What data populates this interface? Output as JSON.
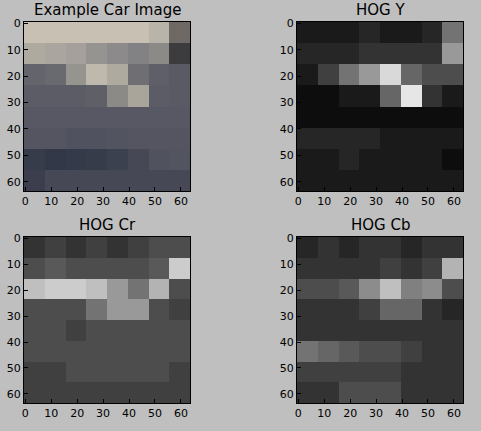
{
  "chart_data": [
    {
      "type": "image",
      "title": "Example Car Image",
      "xlim": [
        -0.5,
        63.5
      ],
      "ylim": [
        63.5,
        -0.5
      ],
      "xticks": [
        0,
        10,
        20,
        30,
        40,
        50,
        60
      ],
      "yticks": [
        0,
        10,
        20,
        30,
        40,
        50,
        60
      ],
      "pixels": [
        [
          [
            200,
            192,
            178
          ],
          [
            200,
            192,
            178
          ],
          [
            200,
            192,
            178
          ],
          [
            200,
            192,
            178
          ],
          [
            200,
            192,
            178
          ],
          [
            200,
            192,
            178
          ],
          [
            185,
            180,
            170
          ],
          [
            110,
            105,
            100
          ]
        ],
        [
          [
            175,
            170,
            160
          ],
          [
            170,
            165,
            158
          ],
          [
            165,
            160,
            155
          ],
          [
            150,
            148,
            145
          ],
          [
            140,
            138,
            138
          ],
          [
            130,
            130,
            132
          ],
          [
            140,
            138,
            135
          ],
          [
            60,
            60,
            62
          ]
        ],
        [
          [
            100,
            100,
            108
          ],
          [
            105,
            105,
            112
          ],
          [
            150,
            148,
            142
          ],
          [
            190,
            185,
            172
          ],
          [
            175,
            170,
            160
          ],
          [
            110,
            110,
            115
          ],
          [
            95,
            95,
            105
          ],
          [
            90,
            90,
            100
          ]
        ],
        [
          [
            92,
            92,
            102
          ],
          [
            92,
            92,
            102
          ],
          [
            92,
            92,
            102
          ],
          [
            95,
            95,
            104
          ],
          [
            140,
            138,
            135
          ],
          [
            170,
            165,
            155
          ],
          [
            92,
            92,
            102
          ],
          [
            90,
            90,
            100
          ]
        ],
        [
          [
            88,
            88,
            100
          ],
          [
            88,
            88,
            100
          ],
          [
            88,
            88,
            100
          ],
          [
            88,
            88,
            100
          ],
          [
            88,
            88,
            100
          ],
          [
            88,
            88,
            100
          ],
          [
            88,
            88,
            100
          ],
          [
            88,
            88,
            100
          ]
        ],
        [
          [
            85,
            85,
            97
          ],
          [
            85,
            85,
            97
          ],
          [
            80,
            82,
            95
          ],
          [
            80,
            82,
            95
          ],
          [
            82,
            84,
            96
          ],
          [
            85,
            85,
            97
          ],
          [
            85,
            85,
            97
          ],
          [
            85,
            85,
            97
          ]
        ],
        [
          [
            55,
            60,
            75
          ],
          [
            50,
            56,
            72
          ],
          [
            52,
            58,
            74
          ],
          [
            55,
            60,
            75
          ],
          [
            60,
            65,
            80
          ],
          [
            70,
            72,
            86
          ],
          [
            80,
            82,
            94
          ],
          [
            82,
            84,
            96
          ]
        ],
        [
          [
            60,
            62,
            78
          ],
          [
            70,
            72,
            86
          ],
          [
            70,
            72,
            86
          ],
          [
            70,
            72,
            86
          ],
          [
            70,
            72,
            86
          ],
          [
            70,
            72,
            86
          ],
          [
            70,
            72,
            86
          ],
          [
            70,
            72,
            86
          ]
        ]
      ]
    },
    {
      "type": "heatmap",
      "title": "HOG Y",
      "color": "gray",
      "xlim": [
        -0.5,
        63.5
      ],
      "ylim": [
        63.5,
        -0.5
      ],
      "xticks": [
        0,
        10,
        20,
        30,
        40,
        50,
        60
      ],
      "yticks": [
        0,
        10,
        20,
        30,
        40,
        50,
        60
      ],
      "zlim": [
        0,
        1
      ],
      "cells": [
        [
          0.1,
          0.1,
          0.1,
          0.15,
          0.1,
          0.1,
          0.15,
          0.45
        ],
        [
          0.15,
          0.15,
          0.15,
          0.2,
          0.2,
          0.2,
          0.2,
          0.6
        ],
        [
          0.1,
          0.25,
          0.45,
          0.6,
          0.85,
          0.4,
          0.3,
          0.3
        ],
        [
          0.05,
          0.05,
          0.1,
          0.1,
          0.4,
          0.9,
          0.2,
          0.1
        ],
        [
          0.05,
          0.05,
          0.05,
          0.05,
          0.05,
          0.05,
          0.05,
          0.05
        ],
        [
          0.15,
          0.15,
          0.15,
          0.15,
          0.1,
          0.1,
          0.1,
          0.1
        ],
        [
          0.1,
          0.1,
          0.15,
          0.1,
          0.1,
          0.1,
          0.1,
          0.05
        ],
        [
          0.1,
          0.1,
          0.1,
          0.1,
          0.1,
          0.1,
          0.1,
          0.1
        ]
      ]
    },
    {
      "type": "heatmap",
      "title": "HOG Cr",
      "color": "gray",
      "xlim": [
        -0.5,
        63.5
      ],
      "ylim": [
        63.5,
        -0.5
      ],
      "xticks": [
        0,
        10,
        20,
        30,
        40,
        50,
        60
      ],
      "yticks": [
        0,
        10,
        20,
        30,
        40,
        50,
        60
      ],
      "zlim": [
        0,
        1
      ],
      "cells": [
        [
          0.2,
          0.25,
          0.2,
          0.25,
          0.2,
          0.25,
          0.3,
          0.3
        ],
        [
          0.3,
          0.35,
          0.3,
          0.3,
          0.3,
          0.3,
          0.35,
          0.8
        ],
        [
          0.75,
          0.8,
          0.8,
          0.75,
          0.6,
          0.45,
          0.7,
          0.3
        ],
        [
          0.3,
          0.3,
          0.3,
          0.45,
          0.6,
          0.6,
          0.3,
          0.25
        ],
        [
          0.3,
          0.3,
          0.25,
          0.3,
          0.3,
          0.3,
          0.3,
          0.3
        ],
        [
          0.3,
          0.3,
          0.3,
          0.3,
          0.3,
          0.3,
          0.3,
          0.3
        ],
        [
          0.25,
          0.25,
          0.3,
          0.3,
          0.3,
          0.3,
          0.3,
          0.25
        ],
        [
          0.25,
          0.25,
          0.25,
          0.25,
          0.25,
          0.25,
          0.25,
          0.25
        ]
      ]
    },
    {
      "type": "heatmap",
      "title": "HOG Cb",
      "color": "gray",
      "xlim": [
        -0.5,
        63.5
      ],
      "ylim": [
        63.5,
        -0.5
      ],
      "xticks": [
        0,
        10,
        20,
        30,
        40,
        50,
        60
      ],
      "yticks": [
        0,
        10,
        20,
        30,
        40,
        50,
        60
      ],
      "zlim": [
        0,
        1
      ],
      "cells": [
        [
          0.15,
          0.2,
          0.15,
          0.2,
          0.2,
          0.15,
          0.2,
          0.2
        ],
        [
          0.2,
          0.2,
          0.2,
          0.2,
          0.25,
          0.2,
          0.25,
          0.7
        ],
        [
          0.3,
          0.3,
          0.35,
          0.55,
          0.75,
          0.5,
          0.55,
          0.3
        ],
        [
          0.2,
          0.2,
          0.2,
          0.25,
          0.4,
          0.4,
          0.2,
          0.15
        ],
        [
          0.2,
          0.2,
          0.2,
          0.2,
          0.2,
          0.2,
          0.2,
          0.2
        ],
        [
          0.45,
          0.4,
          0.35,
          0.3,
          0.3,
          0.25,
          0.2,
          0.2
        ],
        [
          0.25,
          0.25,
          0.25,
          0.25,
          0.25,
          0.2,
          0.2,
          0.2
        ],
        [
          0.2,
          0.2,
          0.3,
          0.3,
          0.3,
          0.2,
          0.2,
          0.2
        ]
      ]
    }
  ]
}
